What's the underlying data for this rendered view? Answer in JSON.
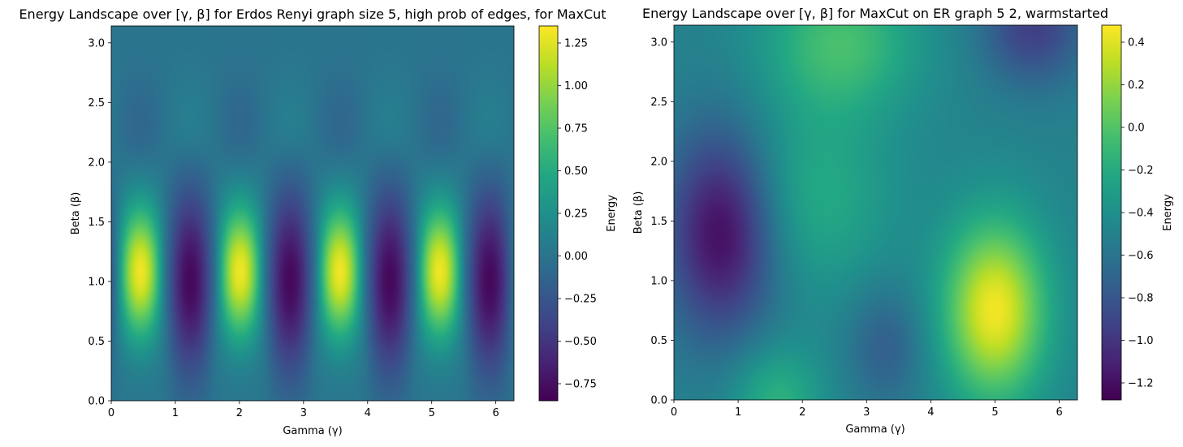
{
  "chart_data": [
    {
      "type": "heatmap",
      "title": "Energy Landscape over [γ, β] for Erdos Renyi graph size 5, high prob of edges, for MaxCut",
      "xlabel": "Gamma (γ)",
      "ylabel": "Beta (β)",
      "colorbar_label": "Energy",
      "colormap": "viridis",
      "xlim": [
        0,
        6.283
      ],
      "ylim": [
        0,
        3.1416
      ],
      "x_ticks": [
        0,
        1,
        2,
        3,
        4,
        5,
        6
      ],
      "x_tick_labels": [
        "0",
        "1",
        "2",
        "3",
        "4",
        "5",
        "6"
      ],
      "y_ticks": [
        0,
        0.5,
        1.0,
        1.5,
        2.0,
        2.5,
        3.0
      ],
      "y_tick_labels": [
        "0.0",
        "0.5",
        "1.0",
        "1.5",
        "2.0",
        "2.5",
        "3.0"
      ],
      "clim": [
        -0.85,
        1.35
      ],
      "colorbar_ticks": [
        -0.75,
        -0.5,
        -0.25,
        0,
        0.25,
        0.5,
        0.75,
        1.0,
        1.25
      ],
      "colorbar_tick_labels": [
        "−0.75",
        "−0.50",
        "−0.25",
        "0.00",
        "0.25",
        "0.50",
        "0.75",
        "1.00",
        "1.25"
      ],
      "features": [
        {
          "kind": "max",
          "gamma": 0.45,
          "beta": 1.1,
          "energy": 1.3
        },
        {
          "kind": "min",
          "gamma": 1.25,
          "beta": 1.0,
          "energy": -0.8
        },
        {
          "kind": "max",
          "gamma": 2.0,
          "beta": 1.1,
          "energy": 1.3
        },
        {
          "kind": "min",
          "gamma": 2.8,
          "beta": 1.0,
          "energy": -0.8
        },
        {
          "kind": "max",
          "gamma": 3.6,
          "beta": 1.1,
          "energy": 1.3
        },
        {
          "kind": "min",
          "gamma": 4.35,
          "beta": 1.0,
          "energy": -0.8
        },
        {
          "kind": "max",
          "gamma": 5.15,
          "beta": 1.1,
          "energy": 1.3
        },
        {
          "kind": "min",
          "gamma": 5.95,
          "beta": 1.0,
          "energy": -0.8
        }
      ],
      "background_energy": 0.0
    },
    {
      "type": "heatmap",
      "title": "Energy Landscape over [γ, β] for MaxCut on ER graph 5 2, warmstarted",
      "xlabel": "Gamma (γ)",
      "ylabel": "Beta (β)",
      "colorbar_label": "Energy",
      "colormap": "viridis",
      "xlim": [
        0,
        6.283
      ],
      "ylim": [
        0,
        3.1416
      ],
      "x_ticks": [
        0,
        1,
        2,
        3,
        4,
        5,
        6
      ],
      "x_tick_labels": [
        "0",
        "1",
        "2",
        "3",
        "4",
        "5",
        "6"
      ],
      "y_ticks": [
        0,
        0.5,
        1.0,
        1.5,
        2.0,
        2.5,
        3.0
      ],
      "y_tick_labels": [
        "0.0",
        "0.5",
        "1.0",
        "1.5",
        "2.0",
        "2.5",
        "3.0"
      ],
      "clim": [
        -1.28,
        0.48
      ],
      "colorbar_ticks": [
        -1.2,
        -1.0,
        -0.8,
        -0.6,
        -0.4,
        -0.2,
        0.0,
        0.2,
        0.4
      ],
      "colorbar_tick_labels": [
        "−1.2",
        "−1.0",
        "−0.8",
        "−0.6",
        "−0.4",
        "−0.2",
        "0.0",
        "0.2",
        "0.4"
      ],
      "features": [
        {
          "kind": "min",
          "gamma": 0.75,
          "beta": 1.4,
          "energy": -1.25
        },
        {
          "kind": "max",
          "gamma": 5.0,
          "beta": 0.75,
          "energy": 0.45
        },
        {
          "kind": "max",
          "gamma": 2.7,
          "beta": 3.0,
          "energy": -0.1
        },
        {
          "kind": "max",
          "gamma": 1.6,
          "beta": 0.0,
          "energy": -0.1
        },
        {
          "kind": "min",
          "gamma": 5.5,
          "beta": 3.1,
          "energy": -0.95
        },
        {
          "kind": "min",
          "gamma": 3.3,
          "beta": 0.45,
          "energy": -0.75
        }
      ],
      "background_energy": -0.5
    }
  ]
}
